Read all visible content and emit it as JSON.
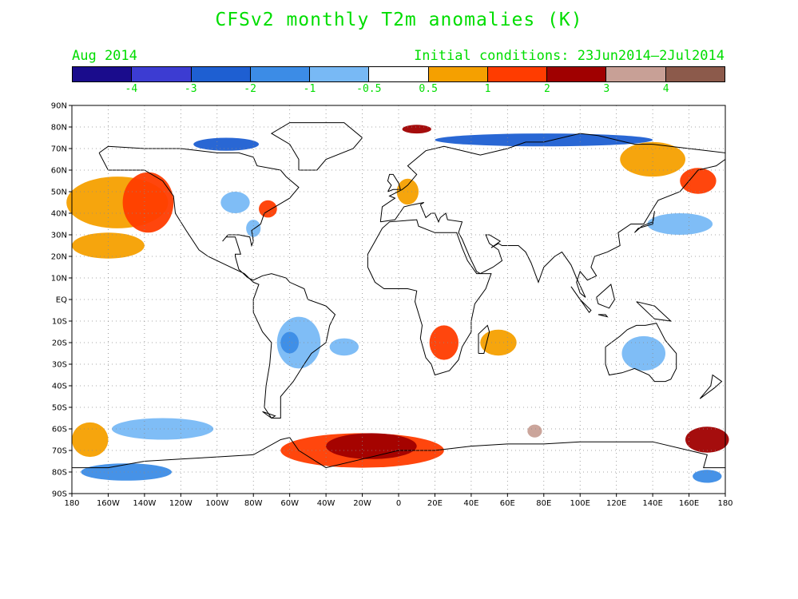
{
  "title": "CFSv2 monthly T2m anomalies (K)",
  "month_label": "Aug 2014",
  "init_label": "Initial conditions: 23Jun2014–2Jul2014",
  "colorbar": {
    "colors": [
      "#1a0c8c",
      "#3c3cd2",
      "#1e5fd2",
      "#3c8ce6",
      "#78b9f5",
      "#ffffff",
      "#f5a000",
      "#ff3c00",
      "#a00000",
      "#c8a096",
      "#8c5a4b"
    ],
    "tick_labels": [
      "-4",
      "-3",
      "-2",
      "-1",
      "-0.5",
      "0.5",
      "1",
      "2",
      "3",
      "4"
    ]
  },
  "axes": {
    "lon_labels": [
      "180",
      "160W",
      "140W",
      "120W",
      "100W",
      "80W",
      "60W",
      "40W",
      "20W",
      "0",
      "20E",
      "40E",
      "60E",
      "80E",
      "100E",
      "120E",
      "140E",
      "160E",
      "180"
    ],
    "lat_labels": [
      "90N",
      "80N",
      "70N",
      "60N",
      "50N",
      "40N",
      "30N",
      "20N",
      "10N",
      "EQ",
      "10S",
      "20S",
      "30S",
      "40S",
      "50S",
      "60S",
      "70S",
      "80S",
      "90S"
    ]
  },
  "anomaly_regions": [
    {
      "level": 0.8,
      "lon": -155,
      "lat": 45,
      "rx": 28,
      "ry": 12
    },
    {
      "level": 1.5,
      "lon": -138,
      "lat": 45,
      "rx": 14,
      "ry": 14
    },
    {
      "level": 0.8,
      "lon": -160,
      "lat": 25,
      "rx": 20,
      "ry": 6
    },
    {
      "level": -1,
      "lon": -90,
      "lat": 45,
      "rx": 8,
      "ry": 5
    },
    {
      "level": -1,
      "lon": -80,
      "lat": 33,
      "rx": 4,
      "ry": 4
    },
    {
      "level": 1.5,
      "lon": -72,
      "lat": 42,
      "rx": 5,
      "ry": 4
    },
    {
      "level": -2.5,
      "lon": -95,
      "lat": 72,
      "rx": 18,
      "ry": 3
    },
    {
      "level": -2.5,
      "lon": 80,
      "lat": 74,
      "rx": 60,
      "ry": 3
    },
    {
      "level": 2,
      "lon": 10,
      "lat": 79,
      "rx": 8,
      "ry": 2
    },
    {
      "level": 0.8,
      "lon": 140,
      "lat": 65,
      "rx": 18,
      "ry": 8
    },
    {
      "level": 0.8,
      "lon": 5,
      "lat": 50,
      "rx": 6,
      "ry": 6
    },
    {
      "level": -1,
      "lon": -55,
      "lat": -20,
      "rx": 12,
      "ry": 12
    },
    {
      "level": -2,
      "lon": -60,
      "lat": -20,
      "rx": 5,
      "ry": 5
    },
    {
      "level": -0.8,
      "lon": -30,
      "lat": -22,
      "rx": 8,
      "ry": 4
    },
    {
      "level": 1.5,
      "lon": 25,
      "lat": -20,
      "rx": 8,
      "ry": 8
    },
    {
      "level": 0.8,
      "lon": 55,
      "lat": -20,
      "rx": 10,
      "ry": 6
    },
    {
      "level": -1,
      "lon": 135,
      "lat": -25,
      "rx": 12,
      "ry": 8
    },
    {
      "level": -1,
      "lon": -130,
      "lat": -60,
      "rx": 28,
      "ry": 5
    },
    {
      "level": -2,
      "lon": -150,
      "lat": -80,
      "rx": 25,
      "ry": 4
    },
    {
      "level": 1.5,
      "lon": -20,
      "lat": -70,
      "rx": 45,
      "ry": 8
    },
    {
      "level": 2.5,
      "lon": -15,
      "lat": -68,
      "rx": 25,
      "ry": 6
    },
    {
      "level": 3,
      "lon": 75,
      "lat": -61,
      "rx": 4,
      "ry": 3
    },
    {
      "level": 2.5,
      "lon": 170,
      "lat": -65,
      "rx": 12,
      "ry": 6
    },
    {
      "level": -2,
      "lon": 170,
      "lat": -82,
      "rx": 8,
      "ry": 3
    },
    {
      "level": 0.8,
      "lon": -170,
      "lat": -65,
      "rx": 10,
      "ry": 8
    },
    {
      "level": -1,
      "lon": 155,
      "lat": 35,
      "rx": 18,
      "ry": 5
    },
    {
      "level": 1.5,
      "lon": 165,
      "lat": 55,
      "rx": 10,
      "ry": 6
    }
  ]
}
